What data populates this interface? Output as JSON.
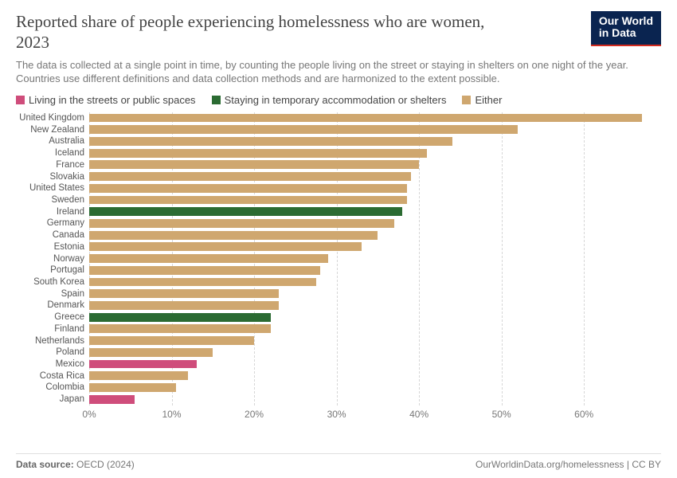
{
  "header": {
    "title": "Reported share of people experiencing homelessness who are women, 2023",
    "subtitle": "The data is collected at a single point in time, by counting the people living on the street or staying in shelters on one night of the year. Countries use different definitions and data collection methods and are harmonized to the extent possible.",
    "logo_line1": "Our World",
    "logo_line2": "in Data",
    "logo_bg": "#0a2450",
    "logo_accent": "#d42b1f"
  },
  "legend": [
    {
      "label": "Living in the streets or public spaces",
      "color": "#cf4d7b"
    },
    {
      "label": "Staying in temporary accommodation or shelters",
      "color": "#2b6b32"
    },
    {
      "label": "Either",
      "color": "#cfa76f"
    }
  ],
  "chart": {
    "type": "bar_horizontal",
    "x_min": 0,
    "x_max": 68,
    "x_ticks": [
      0,
      10,
      20,
      30,
      40,
      50,
      60
    ],
    "x_tick_suffix": "%",
    "grid_color": "#d6d6d6",
    "background_color": "#ffffff",
    "label_fontsize": 11.5,
    "tick_fontsize": 12,
    "bars": [
      {
        "label": "United Kingdom",
        "value": 67,
        "color": "#cfa76f"
      },
      {
        "label": "New Zealand",
        "value": 52,
        "color": "#cfa76f"
      },
      {
        "label": "Australia",
        "value": 44,
        "color": "#cfa76f"
      },
      {
        "label": "Iceland",
        "value": 41,
        "color": "#cfa76f"
      },
      {
        "label": "France",
        "value": 40,
        "color": "#cfa76f"
      },
      {
        "label": "Slovakia",
        "value": 39,
        "color": "#cfa76f"
      },
      {
        "label": "United States",
        "value": 38.5,
        "color": "#cfa76f"
      },
      {
        "label": "Sweden",
        "value": 38.5,
        "color": "#cfa76f"
      },
      {
        "label": "Ireland",
        "value": 38,
        "color": "#2b6b32"
      },
      {
        "label": "Germany",
        "value": 37,
        "color": "#cfa76f"
      },
      {
        "label": "Canada",
        "value": 35,
        "color": "#cfa76f"
      },
      {
        "label": "Estonia",
        "value": 33,
        "color": "#cfa76f"
      },
      {
        "label": "Norway",
        "value": 29,
        "color": "#cfa76f"
      },
      {
        "label": "Portugal",
        "value": 28,
        "color": "#cfa76f"
      },
      {
        "label": "South Korea",
        "value": 27.5,
        "color": "#cfa76f"
      },
      {
        "label": "Spain",
        "value": 23,
        "color": "#cfa76f"
      },
      {
        "label": "Denmark",
        "value": 23,
        "color": "#cfa76f"
      },
      {
        "label": "Greece",
        "value": 22,
        "color": "#2b6b32"
      },
      {
        "label": "Finland",
        "value": 22,
        "color": "#cfa76f"
      },
      {
        "label": "Netherlands",
        "value": 20,
        "color": "#cfa76f"
      },
      {
        "label": "Poland",
        "value": 15,
        "color": "#cfa76f"
      },
      {
        "label": "Mexico",
        "value": 13,
        "color": "#cf4d7b"
      },
      {
        "label": "Costa Rica",
        "value": 12,
        "color": "#cfa76f"
      },
      {
        "label": "Colombia",
        "value": 10.5,
        "color": "#cfa76f"
      },
      {
        "label": "Japan",
        "value": 5.5,
        "color": "#cf4d7b"
      }
    ]
  },
  "footer": {
    "source_label": "Data source:",
    "source_value": "OECD (2024)",
    "attribution": "OurWorldinData.org/homelessness | CC BY"
  }
}
